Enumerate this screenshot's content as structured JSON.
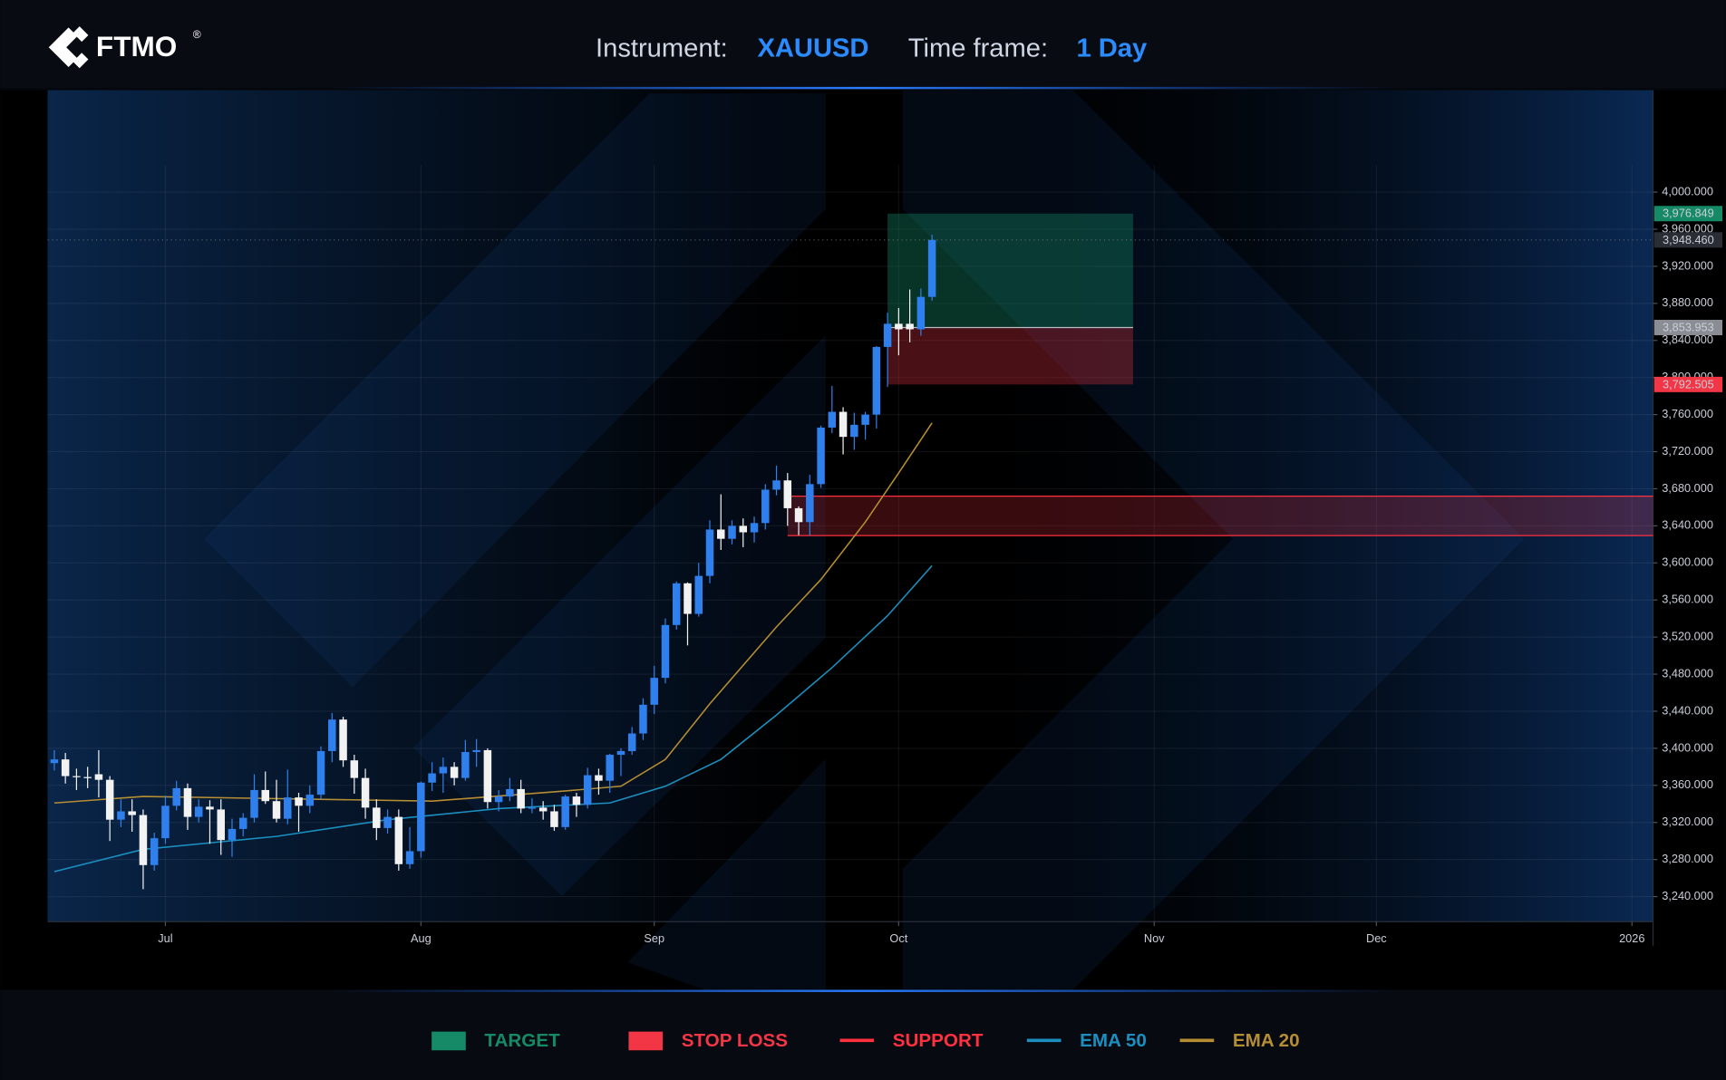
{
  "header": {
    "logo": "FTMO",
    "logo_mark": "®",
    "instrument_label": "Instrument:",
    "instrument": "XAUUSD",
    "timeframe_label": "Time frame:",
    "timeframe": "1 Day"
  },
  "chart_data": {
    "type": "candlestick",
    "x": [
      0,
      1,
      2,
      3,
      4,
      5,
      6,
      7,
      8,
      9,
      10,
      11,
      12,
      13,
      14,
      15,
      16,
      17,
      18,
      19,
      20,
      21,
      22,
      23,
      24,
      25,
      26,
      27,
      28,
      29,
      30,
      31,
      32,
      33,
      34,
      35,
      36,
      37,
      38,
      39,
      40,
      41,
      42,
      43,
      44,
      45,
      46,
      47,
      48,
      49,
      50,
      51,
      52,
      53,
      54,
      55,
      56,
      57,
      58,
      59,
      60,
      61,
      62,
      63,
      64,
      65,
      66,
      67,
      68,
      69,
      70,
      71,
      72,
      73,
      74,
      75,
      76,
      77,
      78,
      79
    ],
    "open": [
      3384,
      3388,
      3370,
      3369,
      3372,
      3366,
      3323,
      3332,
      3328,
      3274,
      3303,
      3338,
      3357,
      3326,
      3337,
      3334,
      3301,
      3313,
      3325,
      3355,
      3343,
      3324,
      3347,
      3338,
      3350,
      3397,
      3431,
      3387,
      3368,
      3336,
      3314,
      3326,
      3275,
      3289,
      3363,
      3373,
      3380,
      3368,
      3396,
      3398,
      3342,
      3348,
      3356,
      3335,
      3336,
      3332,
      3315,
      3348,
      3339,
      3371,
      3365,
      3393,
      3397,
      3416,
      3447,
      3476,
      3533,
      3578,
      3545,
      3586,
      3636,
      3626,
      3640,
      3633,
      3643,
      3679,
      3689,
      3659,
      3644,
      3685,
      3746,
      3763,
      3736,
      3749,
      3760,
      3833,
      3858,
      3858,
      3852,
      3887
    ],
    "high": [
      3398,
      3395,
      3378,
      3380,
      3398,
      3370,
      3345,
      3345,
      3334,
      3309,
      3349,
      3365,
      3362,
      3345,
      3344,
      3345,
      3324,
      3330,
      3372,
      3375,
      3366,
      3377,
      3352,
      3360,
      3402,
      3438,
      3434,
      3393,
      3378,
      3345,
      3334,
      3334,
      3315,
      3364,
      3385,
      3390,
      3385,
      3409,
      3410,
      3400,
      3355,
      3368,
      3366,
      3346,
      3343,
      3339,
      3350,
      3352,
      3379,
      3378,
      3394,
      3400,
      3423,
      3454,
      3489,
      3540,
      3580,
      3579,
      3600,
      3646,
      3674,
      3646,
      3648,
      3650,
      3685,
      3705,
      3697,
      3661,
      3695,
      3748,
      3791,
      3768,
      3762,
      3763,
      3834,
      3870,
      3875,
      3895,
      3896,
      3954
    ],
    "low": [
      3376,
      3362,
      3355,
      3357,
      3347,
      3300,
      3315,
      3310,
      3248,
      3268,
      3297,
      3333,
      3312,
      3320,
      3297,
      3285,
      3283,
      3305,
      3320,
      3340,
      3320,
      3318,
      3310,
      3330,
      3345,
      3385,
      3380,
      3351,
      3324,
      3301,
      3308,
      3268,
      3270,
      3282,
      3354,
      3352,
      3360,
      3365,
      3380,
      3335,
      3332,
      3343,
      3330,
      3330,
      3323,
      3311,
      3312,
      3326,
      3335,
      3350,
      3352,
      3370,
      3393,
      3409,
      3437,
      3470,
      3528,
      3511,
      3542,
      3578,
      3614,
      3620,
      3617,
      3622,
      3636,
      3673,
      3640,
      3630,
      3630,
      3681,
      3740,
      3717,
      3722,
      3733,
      3745,
      3790,
      3824,
      3838,
      3845,
      3883
    ],
    "close": [
      3388,
      3370,
      3369,
      3368,
      3366,
      3323,
      3332,
      3328,
      3274,
      3303,
      3338,
      3357,
      3326,
      3337,
      3334,
      3301,
      3313,
      3325,
      3355,
      3343,
      3324,
      3347,
      3338,
      3350,
      3397,
      3431,
      3387,
      3368,
      3336,
      3314,
      3326,
      3275,
      3289,
      3363,
      3373,
      3380,
      3368,
      3396,
      3398,
      3342,
      3348,
      3356,
      3335,
      3336,
      3332,
      3315,
      3348,
      3339,
      3371,
      3365,
      3393,
      3397,
      3416,
      3447,
      3476,
      3533,
      3578,
      3545,
      3586,
      3636,
      3626,
      3640,
      3633,
      3643,
      3679,
      3689,
      3659,
      3644,
      3685,
      3746,
      3763,
      3736,
      3749,
      3760,
      3833,
      3858,
      3852,
      3852,
      3887,
      3948.46
    ],
    "up_color": "#2f80ed",
    "down_color": "#f2f2f2",
    "xlim": [
      -0.6,
      143.9
    ],
    "xticks": [
      {
        "value": 10,
        "label": "Jul"
      },
      {
        "value": 33,
        "label": "Aug"
      },
      {
        "value": 54,
        "label": "Sep"
      },
      {
        "value": 76,
        "label": "Oct"
      },
      {
        "value": 99,
        "label": "Nov"
      },
      {
        "value": 119,
        "label": "Dec"
      },
      {
        "value": 142,
        "label": "2026"
      }
    ],
    "ylim": [
      3213,
      4110
    ],
    "yticks": [
      {
        "value": 3240,
        "label": "3,240.000"
      },
      {
        "value": 3280,
        "label": "3,280.000"
      },
      {
        "value": 3320,
        "label": "3,320.000"
      },
      {
        "value": 3360,
        "label": "3,360.000"
      },
      {
        "value": 3400,
        "label": "3,400.000"
      },
      {
        "value": 3440,
        "label": "3,440.000"
      },
      {
        "value": 3480,
        "label": "3,480.000"
      },
      {
        "value": 3520,
        "label": "3,520.000"
      },
      {
        "value": 3560,
        "label": "3,560.000"
      },
      {
        "value": 3600,
        "label": "3,600.000"
      },
      {
        "value": 3640,
        "label": "3,640.000"
      },
      {
        "value": 3680,
        "label": "3,680.000"
      },
      {
        "value": 3720,
        "label": "3,720.000"
      },
      {
        "value": 3760,
        "label": "3,760.000"
      },
      {
        "value": 3800,
        "label": "3,800.000"
      },
      {
        "value": 3840,
        "label": "3,840.000"
      },
      {
        "value": 3880,
        "label": "3,880.000"
      },
      {
        "value": 3920,
        "label": "3,920.000"
      },
      {
        "value": 3960,
        "label": "3,960.000"
      },
      {
        "value": 4000,
        "label": "4,000.000"
      }
    ],
    "grid": true,
    "position": {
      "x": [
        75,
        97.1
      ],
      "target": {
        "name": "TARGET",
        "value": 3976.849,
        "label": "3,976.849",
        "color": "#168a66"
      },
      "entry": {
        "value": 3853.953,
        "label": "3,853.953",
        "color": "#8a8d93"
      },
      "stop": {
        "name": "STOP LOSS",
        "value": 3792.505,
        "label": "3,792.505",
        "color": "#f23645"
      }
    },
    "support": {
      "name": "SUPPORT",
      "x_start": 66,
      "low": 3629.5,
      "high": 3672,
      "color": "#ff3040"
    },
    "last_price": {
      "value": 3948.46,
      "label": "3,948.460",
      "color": "#2a2d33"
    },
    "series": [
      {
        "name": "EMA 50",
        "color": "#1b8fc0",
        "x": [
          0,
          8,
          20,
          30,
          40,
          50,
          55,
          60,
          65,
          70,
          75,
          79
        ],
        "values": [
          3267,
          3291,
          3305,
          3323,
          3335,
          3341,
          3359,
          3388,
          3436,
          3487,
          3543,
          3597
        ]
      },
      {
        "name": "EMA 20",
        "color": "#b58d32",
        "x": [
          0,
          8,
          34,
          45,
          51,
          55,
          59,
          65,
          69,
          73,
          76,
          79
        ],
        "values": [
          3341,
          3348,
          3343,
          3353,
          3359,
          3388,
          3448,
          3531,
          3582,
          3644,
          3697,
          3751
        ]
      }
    ]
  }
}
